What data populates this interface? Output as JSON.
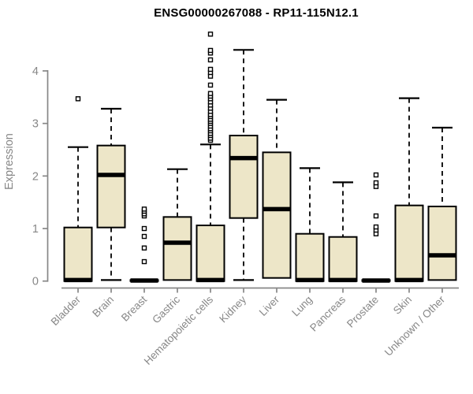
{
  "chart_data": {
    "type": "boxplot",
    "title": "ENSG00000267088 - RP11-115N12.1",
    "ylabel": "Expression",
    "xlabel": "",
    "ylim": [
      0,
      4.75
    ],
    "yticks": [
      0,
      1,
      2,
      3,
      4
    ],
    "grid": false,
    "legend": "none",
    "categories": [
      "Bladder",
      "Brain",
      "Breast",
      "Gastric",
      "Hematopoietic cells",
      "Kidney",
      "Liver",
      "Lung",
      "Pancreas",
      "Prostate",
      "Skin",
      "Unknown / Other"
    ],
    "boxes": [
      {
        "category": "Bladder",
        "whisker_low": 0,
        "q1": 0,
        "median": 0.02,
        "q3": 1.02,
        "whisker_high": 2.55,
        "outliers": [
          3.47
        ]
      },
      {
        "category": "Brain",
        "whisker_low": 0.02,
        "q1": 1.02,
        "median": 2.02,
        "q3": 2.58,
        "whisker_high": 3.28,
        "outliers": []
      },
      {
        "category": "Breast",
        "whisker_low": 0,
        "q1": 0,
        "median": 0.01,
        "q3": 0.02,
        "whisker_high": 0.02,
        "outliers": [
          0.37,
          0.63,
          0.85,
          1.0,
          1.24,
          1.28,
          1.33,
          1.37
        ]
      },
      {
        "category": "Gastric",
        "whisker_low": 0.02,
        "q1": 0.02,
        "median": 0.73,
        "q3": 1.22,
        "whisker_high": 2.13,
        "outliers": []
      },
      {
        "category": "Hematopoietic cells",
        "whisker_low": 0,
        "q1": 0,
        "median": 0.02,
        "q3": 1.06,
        "whisker_high": 2.6,
        "outliers": [
          2.68,
          2.72,
          2.77,
          2.81,
          2.86,
          2.9,
          2.95,
          3.0,
          3.04,
          3.08,
          3.13,
          3.17,
          3.23,
          3.29,
          3.35,
          3.41,
          3.47,
          3.52,
          3.57,
          3.73,
          3.9,
          3.97,
          4.03,
          4.21,
          4.34,
          4.39,
          4.7
        ]
      },
      {
        "category": "Kidney",
        "whisker_low": 0.02,
        "q1": 1.2,
        "median": 2.34,
        "q3": 2.77,
        "whisker_high": 4.4,
        "outliers": []
      },
      {
        "category": "Liver",
        "whisker_low": 0.06,
        "q1": 0.06,
        "median": 1.37,
        "q3": 2.45,
        "whisker_high": 3.45,
        "outliers": []
      },
      {
        "category": "Lung",
        "whisker_low": 0,
        "q1": 0,
        "median": 0.02,
        "q3": 0.9,
        "whisker_high": 2.15,
        "outliers": []
      },
      {
        "category": "Pancreas",
        "whisker_low": 0,
        "q1": 0,
        "median": 0.02,
        "q3": 0.84,
        "whisker_high": 1.88,
        "outliers": []
      },
      {
        "category": "Prostate",
        "whisker_low": 0,
        "q1": 0,
        "median": 0.01,
        "q3": 0.02,
        "whisker_high": 0.02,
        "outliers": [
          0.9,
          0.97,
          1.03,
          1.24,
          1.8,
          1.87,
          2.02
        ]
      },
      {
        "category": "Skin",
        "whisker_low": 0,
        "q1": 0,
        "median": 0.02,
        "q3": 1.44,
        "whisker_high": 3.48,
        "outliers": []
      },
      {
        "category": "Unknown / Other",
        "whisker_low": 0.02,
        "q1": 0.02,
        "median": 0.49,
        "q3": 1.42,
        "whisker_high": 2.92,
        "outliers": []
      }
    ],
    "colors": {
      "background": "#FFFFFF",
      "box_fill": "#EDE6C8",
      "box_stroke": "#000000",
      "axis": "#878787",
      "title_text": "#000000"
    }
  }
}
